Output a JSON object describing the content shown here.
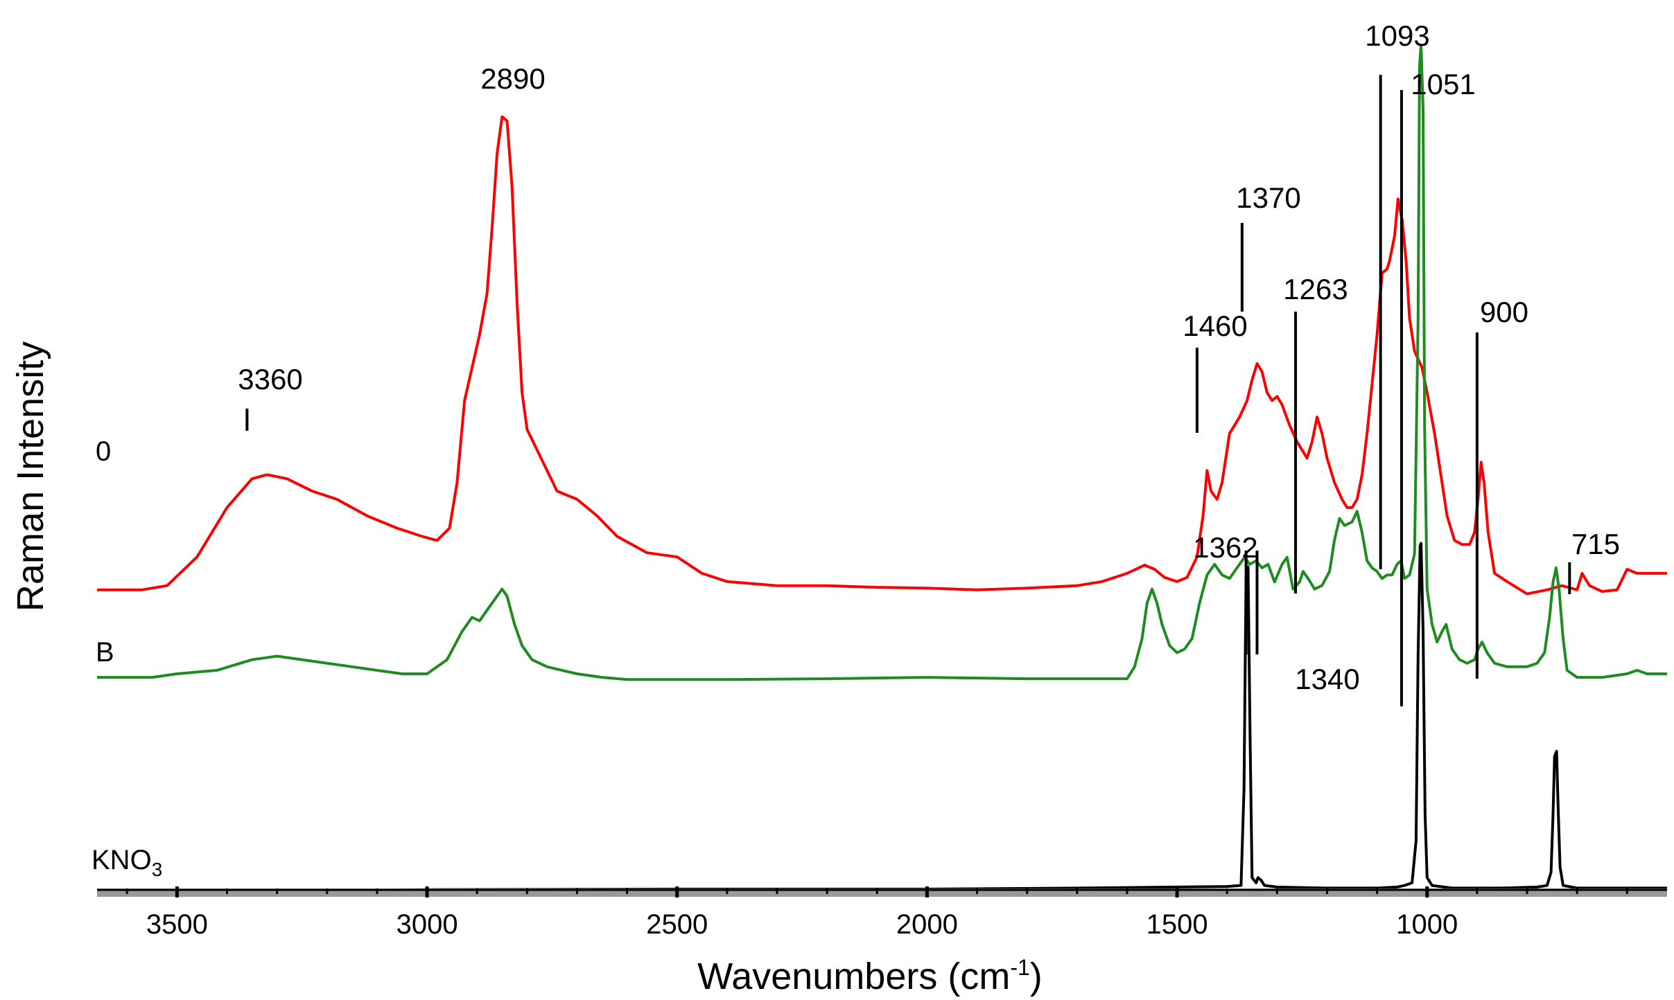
{
  "chart_data": {
    "type": "line",
    "title": "",
    "xlabel": "Wavenumbers (cm",
    "xlabel_sup": "-1",
    "xlabel_suffix": ")",
    "ylabel": "Raman Intensity",
    "xlim": [
      3660,
      520
    ],
    "x_reversed": true,
    "ylim": [
      0,
      1
    ],
    "grid": false,
    "legend": "none",
    "x_ticks": [
      "3500",
      "3000",
      "2500",
      "2000",
      "1500",
      "1000"
    ],
    "x_tick_values": [
      3500,
      3000,
      2500,
      2000,
      1500,
      1000
    ],
    "series": [
      {
        "name": "0",
        "color": "#ff0000",
        "label": "0",
        "points": [
          [
            3660,
            0.39
          ],
          [
            3570,
            0.39
          ],
          [
            3520,
            0.395
          ],
          [
            3460,
            0.43
          ],
          [
            3400,
            0.49
          ],
          [
            3350,
            0.525
          ],
          [
            3320,
            0.53
          ],
          [
            3280,
            0.525
          ],
          [
            3230,
            0.51
          ],
          [
            3180,
            0.5
          ],
          [
            3120,
            0.48
          ],
          [
            3060,
            0.465
          ],
          [
            3010,
            0.455
          ],
          [
            2980,
            0.45
          ],
          [
            2955,
            0.465
          ],
          [
            2940,
            0.52
          ],
          [
            2925,
            0.62
          ],
          [
            2910,
            0.66
          ],
          [
            2895,
            0.7
          ],
          [
            2880,
            0.75
          ],
          [
            2870,
            0.83
          ],
          [
            2860,
            0.92
          ],
          [
            2850,
            0.965
          ],
          [
            2840,
            0.96
          ],
          [
            2830,
            0.88
          ],
          [
            2820,
            0.74
          ],
          [
            2810,
            0.63
          ],
          [
            2800,
            0.585
          ],
          [
            2780,
            0.56
          ],
          [
            2760,
            0.535
          ],
          [
            2740,
            0.51
          ],
          [
            2700,
            0.5
          ],
          [
            2660,
            0.48
          ],
          [
            2620,
            0.455
          ],
          [
            2560,
            0.435
          ],
          [
            2500,
            0.43
          ],
          [
            2450,
            0.41
          ],
          [
            2400,
            0.4
          ],
          [
            2300,
            0.395
          ],
          [
            2200,
            0.395
          ],
          [
            2100,
            0.393
          ],
          [
            2000,
            0.392
          ],
          [
            1900,
            0.39
          ],
          [
            1800,
            0.392
          ],
          [
            1700,
            0.395
          ],
          [
            1650,
            0.4
          ],
          [
            1600,
            0.41
          ],
          [
            1565,
            0.42
          ],
          [
            1545,
            0.415
          ],
          [
            1525,
            0.405
          ],
          [
            1500,
            0.4
          ],
          [
            1480,
            0.405
          ],
          [
            1460,
            0.43
          ],
          [
            1448,
            0.48
          ],
          [
            1440,
            0.535
          ],
          [
            1432,
            0.51
          ],
          [
            1420,
            0.5
          ],
          [
            1410,
            0.52
          ],
          [
            1395,
            0.58
          ],
          [
            1375,
            0.6
          ],
          [
            1360,
            0.62
          ],
          [
            1350,
            0.645
          ],
          [
            1340,
            0.665
          ],
          [
            1330,
            0.655
          ],
          [
            1320,
            0.63
          ],
          [
            1310,
            0.62
          ],
          [
            1300,
            0.625
          ],
          [
            1290,
            0.615
          ],
          [
            1275,
            0.59
          ],
          [
            1260,
            0.57
          ],
          [
            1250,
            0.56
          ],
          [
            1240,
            0.55
          ],
          [
            1230,
            0.57
          ],
          [
            1220,
            0.6
          ],
          [
            1210,
            0.58
          ],
          [
            1200,
            0.55
          ],
          [
            1185,
            0.52
          ],
          [
            1170,
            0.5
          ],
          [
            1160,
            0.49
          ],
          [
            1150,
            0.49
          ],
          [
            1140,
            0.5
          ],
          [
            1130,
            0.53
          ],
          [
            1120,
            0.58
          ],
          [
            1110,
            0.64
          ],
          [
            1100,
            0.7
          ],
          [
            1090,
            0.775
          ],
          [
            1080,
            0.78
          ],
          [
            1075,
            0.79
          ],
          [
            1065,
            0.82
          ],
          [
            1058,
            0.865
          ],
          [
            1050,
            0.84
          ],
          [
            1042,
            0.79
          ],
          [
            1035,
            0.72
          ],
          [
            1025,
            0.68
          ],
          [
            1010,
            0.66
          ],
          [
            1000,
            0.63
          ],
          [
            985,
            0.58
          ],
          [
            970,
            0.52
          ],
          [
            960,
            0.48
          ],
          [
            945,
            0.45
          ],
          [
            930,
            0.445
          ],
          [
            915,
            0.445
          ],
          [
            905,
            0.46
          ],
          [
            898,
            0.5
          ],
          [
            892,
            0.545
          ],
          [
            886,
            0.52
          ],
          [
            878,
            0.46
          ],
          [
            865,
            0.41
          ],
          [
            840,
            0.4
          ],
          [
            800,
            0.385
          ],
          [
            760,
            0.39
          ],
          [
            730,
            0.395
          ],
          [
            700,
            0.39
          ],
          [
            690,
            0.41
          ],
          [
            675,
            0.395
          ],
          [
            650,
            0.388
          ],
          [
            620,
            0.39
          ],
          [
            600,
            0.415
          ],
          [
            580,
            0.41
          ],
          [
            550,
            0.41
          ],
          [
            520,
            0.41
          ]
        ]
      },
      {
        "name": "B",
        "color": "#1e8c1e",
        "label": "B",
        "points": [
          [
            3660,
            0.095
          ],
          [
            3550,
            0.095
          ],
          [
            3500,
            0.1
          ],
          [
            3420,
            0.105
          ],
          [
            3350,
            0.12
          ],
          [
            3300,
            0.125
          ],
          [
            3250,
            0.12
          ],
          [
            3150,
            0.11
          ],
          [
            3050,
            0.1
          ],
          [
            3000,
            0.1
          ],
          [
            2960,
            0.12
          ],
          [
            2930,
            0.16
          ],
          [
            2910,
            0.18
          ],
          [
            2895,
            0.175
          ],
          [
            2880,
            0.19
          ],
          [
            2865,
            0.205
          ],
          [
            2850,
            0.22
          ],
          [
            2840,
            0.21
          ],
          [
            2825,
            0.17
          ],
          [
            2810,
            0.14
          ],
          [
            2790,
            0.12
          ],
          [
            2760,
            0.11
          ],
          [
            2730,
            0.105
          ],
          [
            2700,
            0.1
          ],
          [
            2650,
            0.095
          ],
          [
            2600,
            0.092
          ],
          [
            2400,
            0.092
          ],
          [
            2200,
            0.093
          ],
          [
            2000,
            0.095
          ],
          [
            1800,
            0.093
          ],
          [
            1600,
            0.093
          ],
          [
            1585,
            0.11
          ],
          [
            1570,
            0.15
          ],
          [
            1560,
            0.2
          ],
          [
            1550,
            0.22
          ],
          [
            1540,
            0.2
          ],
          [
            1530,
            0.17
          ],
          [
            1515,
            0.14
          ],
          [
            1500,
            0.13
          ],
          [
            1485,
            0.135
          ],
          [
            1470,
            0.15
          ],
          [
            1455,
            0.2
          ],
          [
            1440,
            0.24
          ],
          [
            1425,
            0.255
          ],
          [
            1410,
            0.24
          ],
          [
            1395,
            0.235
          ],
          [
            1380,
            0.25
          ],
          [
            1365,
            0.265
          ],
          [
            1355,
            0.255
          ],
          [
            1342,
            0.26
          ],
          [
            1330,
            0.25
          ],
          [
            1318,
            0.255
          ],
          [
            1305,
            0.23
          ],
          [
            1290,
            0.255
          ],
          [
            1280,
            0.265
          ],
          [
            1268,
            0.22
          ],
          [
            1255,
            0.23
          ],
          [
            1248,
            0.245
          ],
          [
            1238,
            0.235
          ],
          [
            1225,
            0.22
          ],
          [
            1210,
            0.225
          ],
          [
            1195,
            0.245
          ],
          [
            1185,
            0.29
          ],
          [
            1175,
            0.32
          ],
          [
            1165,
            0.31
          ],
          [
            1150,
            0.315
          ],
          [
            1140,
            0.33
          ],
          [
            1130,
            0.3
          ],
          [
            1120,
            0.26
          ],
          [
            1110,
            0.25
          ],
          [
            1100,
            0.245
          ],
          [
            1090,
            0.235
          ],
          [
            1080,
            0.24
          ],
          [
            1070,
            0.24
          ],
          [
            1060,
            0.255
          ],
          [
            1052,
            0.26
          ],
          [
            1045,
            0.235
          ],
          [
            1035,
            0.24
          ],
          [
            1025,
            0.27
          ],
          [
            1018,
            0.6
          ],
          [
            1015,
            0.96
          ],
          [
            1012,
            0.99
          ],
          [
            1008,
            0.9
          ],
          [
            1005,
            0.45
          ],
          [
            1000,
            0.22
          ],
          [
            990,
            0.17
          ],
          [
            980,
            0.145
          ],
          [
            970,
            0.16
          ],
          [
            962,
            0.17
          ],
          [
            950,
            0.135
          ],
          [
            935,
            0.12
          ],
          [
            920,
            0.115
          ],
          [
            905,
            0.12
          ],
          [
            898,
            0.135
          ],
          [
            890,
            0.145
          ],
          [
            880,
            0.13
          ],
          [
            865,
            0.115
          ],
          [
            840,
            0.11
          ],
          [
            800,
            0.11
          ],
          [
            780,
            0.115
          ],
          [
            765,
            0.13
          ],
          [
            755,
            0.18
          ],
          [
            748,
            0.23
          ],
          [
            742,
            0.25
          ],
          [
            736,
            0.22
          ],
          [
            728,
            0.15
          ],
          [
            720,
            0.105
          ],
          [
            700,
            0.095
          ],
          [
            650,
            0.095
          ],
          [
            600,
            0.1
          ],
          [
            580,
            0.105
          ],
          [
            560,
            0.1
          ],
          [
            520,
            0.1
          ]
        ]
      },
      {
        "name": "KNO3",
        "color": "#000000",
        "label": "KNO",
        "label_sub": "3",
        "points": [
          [
            3660,
            0.005
          ],
          [
            3200,
            0.006
          ],
          [
            3000,
            0.007
          ],
          [
            2500,
            0.008
          ],
          [
            2000,
            0.008
          ],
          [
            1700,
            0.01
          ],
          [
            1500,
            0.012
          ],
          [
            1400,
            0.013
          ],
          [
            1372,
            0.015
          ],
          [
            1366,
            0.2
          ],
          [
            1362,
            0.6
          ],
          [
            1358,
            0.62
          ],
          [
            1354,
            0.3
          ],
          [
            1350,
            0.03
          ],
          [
            1342,
            0.02
          ],
          [
            1338,
            0.03
          ],
          [
            1332,
            0.025
          ],
          [
            1325,
            0.015
          ],
          [
            1300,
            0.012
          ],
          [
            1200,
            0.01
          ],
          [
            1100,
            0.01
          ],
          [
            1060,
            0.012
          ],
          [
            1045,
            0.015
          ],
          [
            1030,
            0.02
          ],
          [
            1022,
            0.1
          ],
          [
            1018,
            0.45
          ],
          [
            1014,
            0.66
          ],
          [
            1012,
            0.665
          ],
          [
            1008,
            0.5
          ],
          [
            1004,
            0.15
          ],
          [
            1000,
            0.03
          ],
          [
            990,
            0.015
          ],
          [
            950,
            0.01
          ],
          [
            900,
            0.01
          ],
          [
            850,
            0.01
          ],
          [
            780,
            0.012
          ],
          [
            760,
            0.015
          ],
          [
            752,
            0.04
          ],
          [
            748,
            0.15
          ],
          [
            745,
            0.26
          ],
          [
            741,
            0.27
          ],
          [
            738,
            0.17
          ],
          [
            734,
            0.05
          ],
          [
            728,
            0.015
          ],
          [
            700,
            0.01
          ],
          [
            650,
            0.01
          ],
          [
            600,
            0.01
          ],
          [
            520,
            0.01
          ]
        ]
      }
    ],
    "annotations": [
      {
        "text": "3360",
        "x": 3360,
        "series": "0"
      },
      {
        "text": "2890",
        "x": 2890,
        "series": "0"
      },
      {
        "text": "1460",
        "x": 1460,
        "series": "0"
      },
      {
        "text": "1370",
        "x": 1370,
        "series": "0"
      },
      {
        "text": "1263",
        "x": 1263,
        "series": "0"
      },
      {
        "text": "1093",
        "x": 1093,
        "series": "0"
      },
      {
        "text": "1051",
        "x": 1051,
        "series": "B"
      },
      {
        "text": "900",
        "x": 900,
        "series": "0"
      },
      {
        "text": "1362",
        "x": 1362,
        "series": "KNO3"
      },
      {
        "text": "1340",
        "x": 1340,
        "series": "KNO3"
      },
      {
        "text": "715",
        "x": 715,
        "series": "B"
      }
    ]
  }
}
